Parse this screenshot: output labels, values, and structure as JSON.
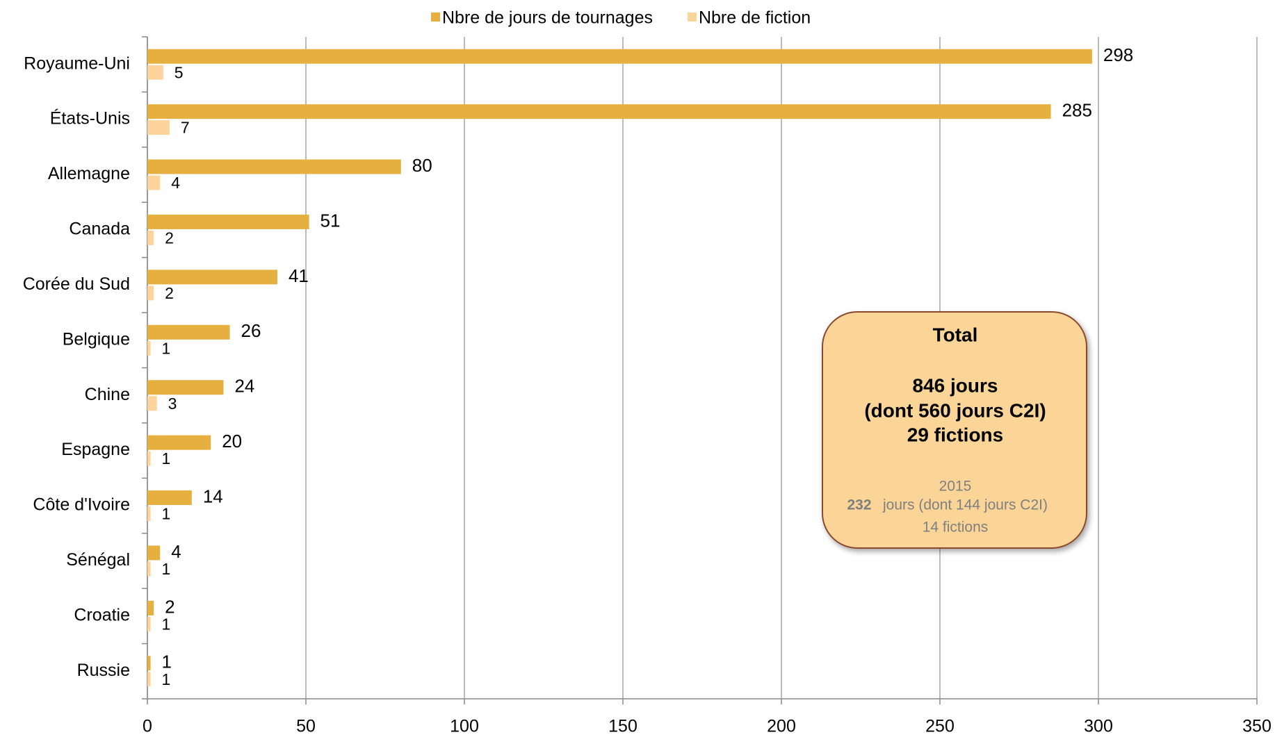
{
  "chart_data": {
    "type": "hbar",
    "categories": [
      "Royaume-Uni",
      "États-Unis",
      "Allemagne",
      "Canada",
      "Corée du Sud",
      "Belgique",
      "Chine",
      "Espagne",
      "Côte d'Ivoire",
      "Sénégal",
      "Croatie",
      "Russie"
    ],
    "series": [
      {
        "name": "Nbre de jours de tournages",
        "color": "#e5b040",
        "values": [
          298,
          285,
          80,
          51,
          41,
          26,
          24,
          20,
          14,
          4,
          2,
          1
        ]
      },
      {
        "name": "Nbre de fiction",
        "color": "#fcd49c",
        "values": [
          5,
          7,
          4,
          2,
          2,
          1,
          3,
          1,
          1,
          1,
          1,
          1
        ]
      }
    ],
    "xlim": [
      0,
      350
    ],
    "xticks": [
      0,
      50,
      100,
      150,
      200,
      250,
      300,
      350
    ],
    "grid": true,
    "legend": "top",
    "annotation": {
      "title": "Total",
      "main": [
        "846 jours",
        "(dont 560 jours C2I)",
        "29 fictions"
      ],
      "year": "2015",
      "days": "232",
      "days_detail": "jours (dont 144 jours C2I)",
      "fictions": "14 fictions"
    }
  }
}
